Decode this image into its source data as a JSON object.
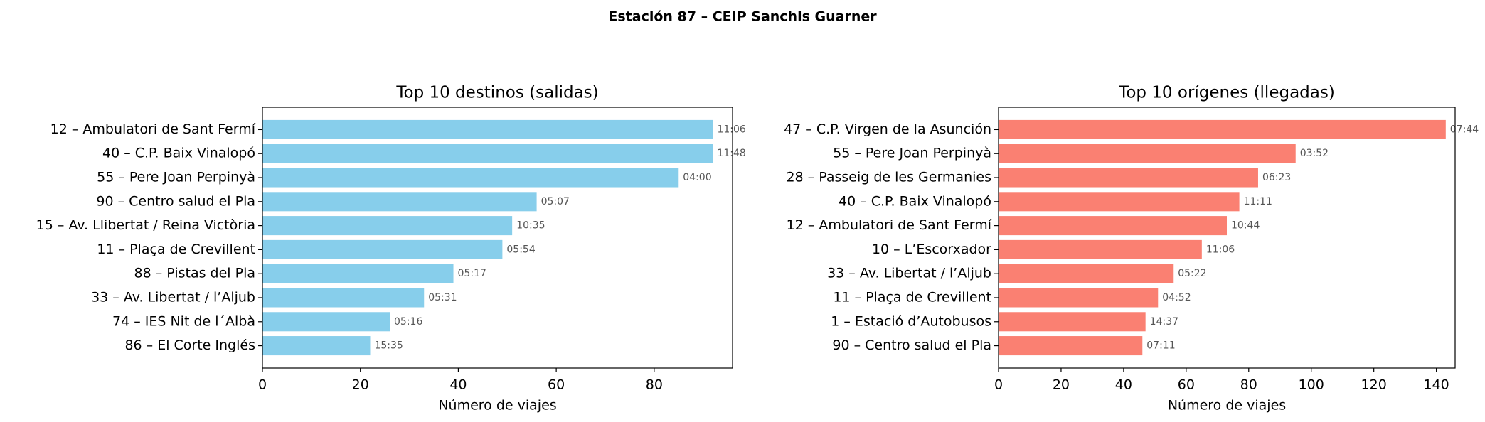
{
  "title": "Estación 87 – CEIP Sanchis Guarner",
  "chart_data": [
    {
      "type": "bar",
      "orientation": "horizontal",
      "title": "Top 10 destinos (salidas)",
      "x_label": "Número de viajes",
      "color": "#87ceeb",
      "categories": [
        "12 – Ambulatori de Sant Fermí",
        "40 – C.P. Baix Vinalopó",
        "55 – Pere Joan Perpinyà",
        "90 – Centro salud el Pla",
        "15 – Av. Llibertat / Reina Victòria",
        "11 – Plaça de Crevillent",
        "88 – Pistas del Pla",
        "33 – Av. Libertat / l’Aljub",
        "74 – IES Nit de l´Albà",
        "86 – El Corte Inglés"
      ],
      "values": [
        92,
        92,
        85,
        56,
        51,
        49,
        39,
        33,
        26,
        22
      ],
      "annotations": [
        "11:06",
        "11:48",
        "04:00",
        "05:07",
        "10:35",
        "05:54",
        "05:17",
        "05:31",
        "05:16",
        "15:35"
      ],
      "xlim": [
        0,
        96
      ],
      "xticks": [
        0,
        20,
        40,
        60,
        80
      ]
    },
    {
      "type": "bar",
      "orientation": "horizontal",
      "title": "Top 10 orígenes (llegadas)",
      "x_label": "Número de viajes",
      "color": "#fa8072",
      "categories": [
        "47 – C.P. Virgen de la Asunción",
        "55 – Pere Joan Perpinyà",
        "28 – Passeig de les Germanies",
        "40 – C.P. Baix Vinalopó",
        "12 – Ambulatori de Sant Fermí",
        "10 – L’Escorxador",
        "33 – Av. Libertat / l’Aljub",
        "11 – Plaça de Crevillent",
        "1 – Estació d’Autobusos",
        "90 – Centro salud el Pla"
      ],
      "values": [
        143,
        95,
        83,
        77,
        73,
        65,
        56,
        51,
        47,
        46
      ],
      "annotations": [
        "07:44",
        "03:52",
        "06:23",
        "11:11",
        "10:44",
        "11:06",
        "05:22",
        "04:52",
        "14:37",
        "07:11"
      ],
      "xlim": [
        0,
        146
      ],
      "xticks": [
        0,
        20,
        40,
        60,
        80,
        100,
        120,
        140
      ]
    }
  ]
}
